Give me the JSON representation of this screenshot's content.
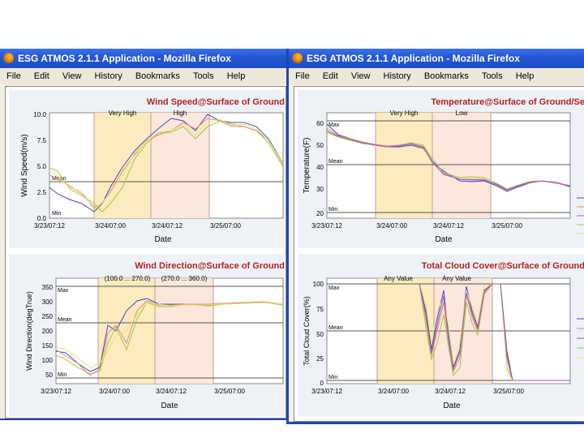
{
  "windows": [
    {
      "title": "ESG ATMOS 2.1.1 Application - Mozilla Firefox",
      "menu": [
        "File",
        "Edit",
        "View",
        "History",
        "Bookmarks",
        "Tools",
        "Help"
      ],
      "charts": [
        {
          "title": "Wind Speed@Surface of Ground",
          "ylabel": "Wind Speed(m/s)",
          "xlabel": "Date",
          "yticks": [
            "10.0",
            "7.5",
            "5.0",
            "2.5",
            "0.0"
          ],
          "xticks": [
            "3/23/07:12",
            "3/24/07:00",
            "3/24/07:12",
            "3/25/07:00"
          ],
          "bands": [
            "Very High",
            "High"
          ],
          "ref": {
            "max": "",
            "mean": "Mean",
            "min": "Min"
          }
        },
        {
          "title": "Wind Direction@Surface of Ground",
          "ylabel": "Wind Direction(degTrue)",
          "xlabel": "Date",
          "yticks": [
            "350",
            "300",
            "250",
            "200",
            "150",
            "100",
            "50"
          ],
          "xticks": [
            "3/23/07:12",
            "3/24/07:00",
            "3/24/07:12",
            "3/25/07:00"
          ],
          "bands": [
            "(100.0 ... 270.0)",
            "(270.0 ... 360.0)"
          ],
          "ref": {
            "max": "Max",
            "mean": "Mean",
            "min": "Min"
          }
        }
      ]
    },
    {
      "title": "ESG ATMOS 2.1.1 Application - Mozilla Firefox",
      "menu": [
        "File",
        "Edit",
        "View",
        "History",
        "Bookmarks",
        "Tools",
        "Help"
      ],
      "charts": [
        {
          "title": "Temperature@Surface of Ground/Se",
          "ylabel": "Temperature(F)",
          "xlabel": "Date",
          "yticks": [
            "60",
            "50",
            "40",
            "30",
            "20"
          ],
          "xticks": [
            "3/23/07:12",
            "3/24/07:00",
            "3/24/07:12",
            "3/25/07:00"
          ],
          "bands": [
            "Very High",
            "Low"
          ],
          "ref": {
            "max": "Max",
            "mean": "Mean",
            "min": "Min"
          }
        },
        {
          "title": "Total Cloud Cover@Surface of Ground",
          "ylabel": "Total Cloud Cover(%)",
          "xlabel": "Date",
          "yticks": [
            "100",
            "75",
            "50",
            "25",
            "0"
          ],
          "xticks": [
            "3/23/07:12",
            "3/24/07:00",
            "3/24/07:12",
            "3/25/07:00"
          ],
          "bands": [
            "Any Value",
            "Any Value"
          ],
          "ref": {
            "max": "Max",
            "mean": "Mean",
            "min": "Min"
          }
        }
      ]
    }
  ],
  "colors": {
    "band1": "#fbebbf",
    "band2": "#fbe7dc",
    "title_red": "#b22222",
    "series": [
      "#3f48cc",
      "#9acd32",
      "#f08080",
      "#e6e86a",
      "#9b59b6"
    ]
  }
}
